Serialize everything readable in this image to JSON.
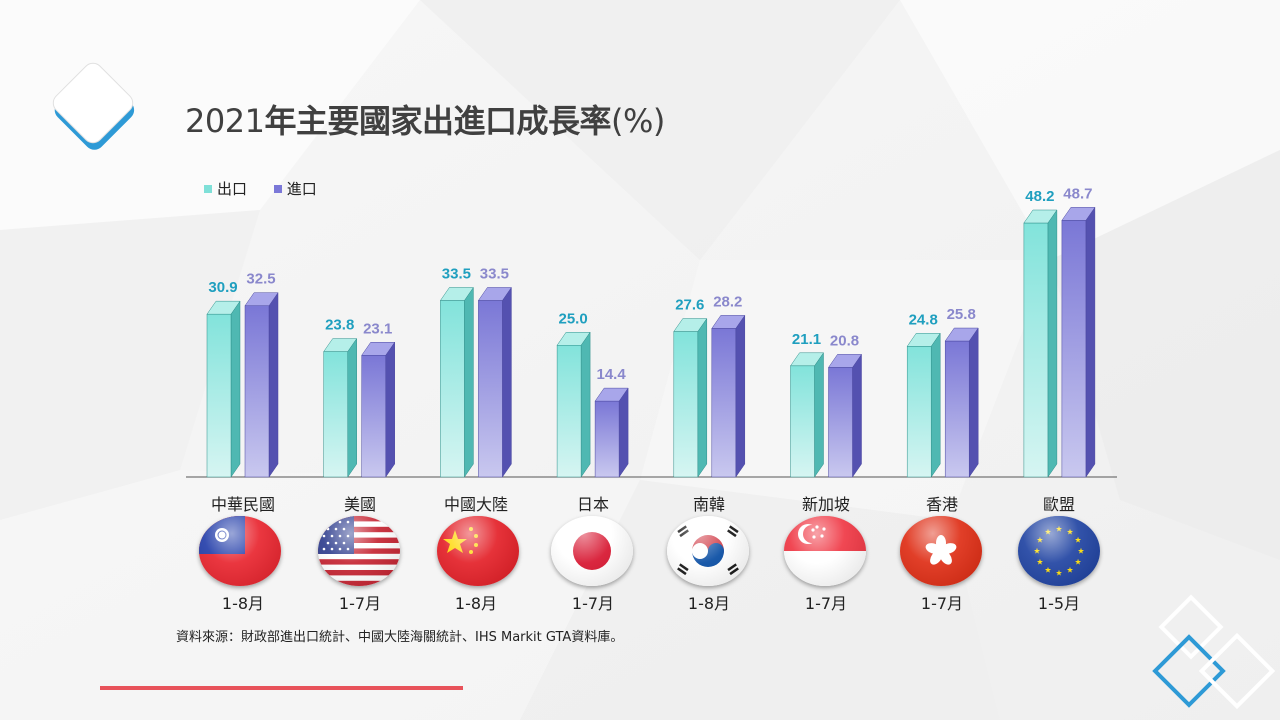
{
  "title": {
    "year": "2021",
    "main": "年主要國家出進口成長率",
    "unit": "(%)"
  },
  "legend": [
    {
      "label": "出口",
      "color": "#7fe0d8"
    },
    {
      "label": "進口",
      "color": "#7b78d8"
    }
  ],
  "chart_data": {
    "type": "bar",
    "categories": [
      "中華民國",
      "美國",
      "中國大陸",
      "日本",
      "南韓",
      "新加坡",
      "香港",
      "歐盟"
    ],
    "series": [
      {
        "name": "出口",
        "values": [
          30.9,
          23.8,
          33.5,
          25.0,
          27.6,
          21.1,
          24.8,
          48.2
        ],
        "labels": [
          "30.9",
          "23.8",
          "33.5",
          "25.0",
          "27.6",
          "21.1",
          "24.8",
          "48.2"
        ],
        "color": "#7fe0d8",
        "label_color": "#1f9fbf"
      },
      {
        "name": "進口",
        "values": [
          32.5,
          23.1,
          33.5,
          14.4,
          28.2,
          20.8,
          25.8,
          48.7
        ],
        "labels": [
          "32.5",
          "23.1",
          "33.5",
          "14.4",
          "28.2",
          "20.8",
          "25.8",
          "48.7"
        ],
        "color": "#7b78d8",
        "label_color": "#8a88cc"
      }
    ],
    "ylim": [
      0,
      50
    ],
    "grid": false
  },
  "countries": [
    {
      "name": "中華民國",
      "period": "1-8月",
      "flag": "taiwan-flag-icon"
    },
    {
      "name": "美國",
      "period": "1-7月",
      "flag": "usa-flag-icon"
    },
    {
      "name": "中國大陸",
      "period": "1-8月",
      "flag": "china-flag-icon"
    },
    {
      "name": "日本",
      "period": "1-7月",
      "flag": "japan-flag-icon"
    },
    {
      "name": "南韓",
      "period": "1-8月",
      "flag": "korea-flag-icon"
    },
    {
      "name": "新加坡",
      "period": "1-7月",
      "flag": "singapore-flag-icon"
    },
    {
      "name": "香港",
      "period": "1-7月",
      "flag": "hongkong-flag-icon"
    },
    {
      "name": "歐盟",
      "period": "1-5月",
      "flag": "eu-flag-icon"
    }
  ],
  "source": "資料來源：財政部進出口統計、中國大陸海關統計、IHS Markit GTA資料庫。",
  "colors": {
    "accent_red": "#e8525a",
    "accent_blue": "#2e9ad6"
  }
}
